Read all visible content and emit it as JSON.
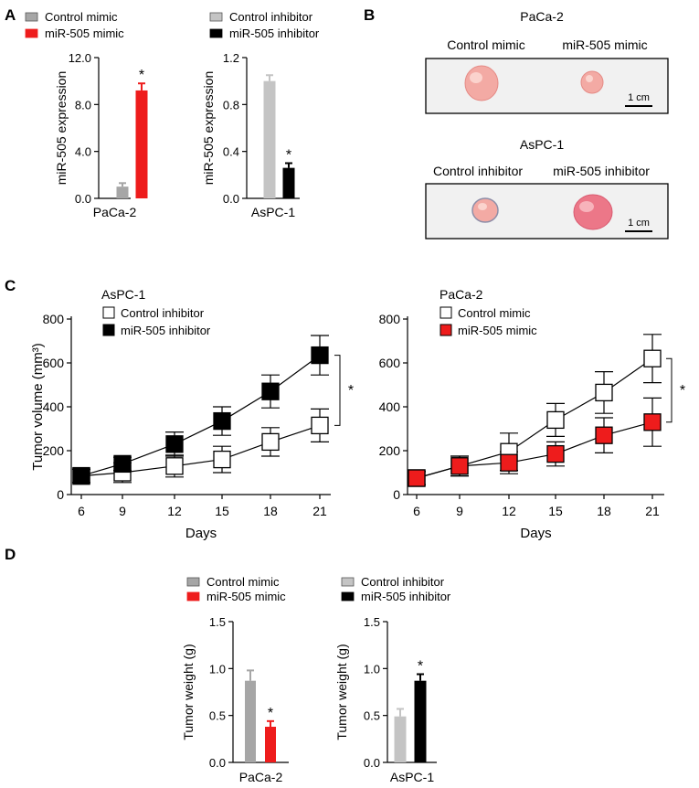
{
  "panels": {
    "A": "A",
    "B": "B",
    "C": "C",
    "D": "D"
  },
  "colors": {
    "gray": "#a6a6a6",
    "light_gray": "#c4c4c4",
    "red": "#ee1c1c",
    "black": "#000000",
    "white": "#ffffff",
    "photo_bg": "#f1f1f1",
    "tumor_pink": "#f3aaa4",
    "tumor_red": "#ec7788"
  },
  "significance_marker": "*",
  "panel_b": {
    "photos": [
      {
        "title": "PaCa-2",
        "left_label": "Control mimic",
        "right_label": "miR-505 mimic",
        "scale_label": "1 cm"
      },
      {
        "title": "AsPC-1",
        "left_label": "Control inhibitor",
        "right_label": "miR-505 inhibitor",
        "scale_label": "1 cm"
      }
    ]
  },
  "chart_data": [
    {
      "id": "A1",
      "panel": "A",
      "type": "bar",
      "xlabel": "PaCa-2",
      "ylabel": "miR-505 expression",
      "ylim": [
        0,
        12
      ],
      "yticks": [
        "0.0",
        "4.0",
        "8.0",
        "12.0"
      ],
      "legend": [
        "Control mimic",
        "miR-505 mimic"
      ],
      "categories": [
        "Control mimic",
        "miR-505 mimic"
      ],
      "values": [
        1.0,
        9.2
      ],
      "errors": [
        0.3,
        0.6
      ],
      "significant": [
        false,
        true
      ]
    },
    {
      "id": "A2",
      "panel": "A",
      "type": "bar",
      "xlabel": "AsPC-1",
      "ylabel": "miR-505 expression",
      "ylim": [
        0,
        1.2
      ],
      "yticks": [
        "0.0",
        "0.4",
        "0.8",
        "1.2"
      ],
      "legend": [
        "Control inhibitor",
        "miR-505 inhibitor"
      ],
      "categories": [
        "Control inhibitor",
        "miR-505 inhibitor"
      ],
      "values": [
        1.0,
        0.26
      ],
      "errors": [
        0.05,
        0.04
      ],
      "significant": [
        false,
        true
      ]
    },
    {
      "id": "C1",
      "panel": "C",
      "type": "line",
      "title": "AsPC-1",
      "xlabel": "Days",
      "ylabel": "Tumor volume (mm³)",
      "x": [
        6,
        9,
        12,
        15,
        18,
        21
      ],
      "ylim": [
        0,
        800
      ],
      "yticks": [
        "0",
        "200",
        "400",
        "600",
        "800"
      ],
      "series": [
        {
          "name": "Control  inhibitor",
          "values": [
            85,
            100,
            130,
            160,
            240,
            315
          ],
          "errors": [
            30,
            45,
            50,
            60,
            65,
            75
          ]
        },
        {
          "name": "miR-505 inhibitor",
          "values": [
            85,
            140,
            230,
            335,
            470,
            635
          ],
          "errors": [
            30,
            30,
            55,
            65,
            75,
            90
          ]
        }
      ],
      "significance": "*"
    },
    {
      "id": "C2",
      "panel": "C",
      "type": "line",
      "title": "PaCa-2",
      "xlabel": "Days",
      "ylabel": "",
      "x": [
        6,
        9,
        12,
        15,
        18,
        21
      ],
      "ylim": [
        0,
        800
      ],
      "yticks": [
        "0",
        "200",
        "400",
        "600",
        "800"
      ],
      "series": [
        {
          "name": "Control mimic",
          "values": [
            75,
            130,
            195,
            340,
            465,
            620
          ],
          "errors": [
            30,
            45,
            85,
            75,
            95,
            110
          ]
        },
        {
          "name": "miR-505 mimic",
          "values": [
            75,
            130,
            145,
            185,
            270,
            330
          ],
          "errors": [
            30,
            45,
            50,
            55,
            80,
            110
          ]
        }
      ],
      "significance": "*"
    },
    {
      "id": "D1",
      "panel": "D",
      "type": "bar",
      "xlabel": "PaCa-2",
      "ylabel": "Tumor weight (g)",
      "ylim": [
        0,
        1.5
      ],
      "yticks": [
        "0.0",
        "0.5",
        "1.0",
        "1.5"
      ],
      "legend": [
        "Control mimic",
        "miR-505 mimic"
      ],
      "categories": [
        "Control mimic",
        "miR-505 mimic"
      ],
      "values": [
        0.87,
        0.38
      ],
      "errors": [
        0.11,
        0.06
      ],
      "significant": [
        false,
        true
      ]
    },
    {
      "id": "D2",
      "panel": "D",
      "type": "bar",
      "xlabel": "AsPC-1",
      "ylabel": "Tumor weight (g)",
      "ylim": [
        0,
        1.5
      ],
      "yticks": [
        "0.0",
        "0.5",
        "1.0",
        "1.5"
      ],
      "legend": [
        "Control inhibitor",
        "miR-505 inhibitor"
      ],
      "categories": [
        "Control inhibitor",
        "miR-505 inhibitor"
      ],
      "values": [
        0.49,
        0.87
      ],
      "errors": [
        0.08,
        0.07
      ],
      "significant": [
        false,
        true
      ]
    }
  ]
}
